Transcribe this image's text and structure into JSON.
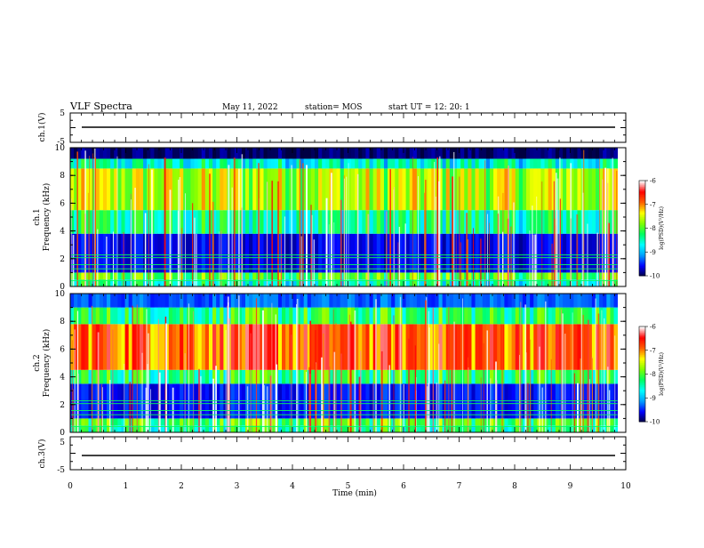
{
  "header": {
    "title": "VLF Spectra",
    "date": "May 11, 2022",
    "station": "station= MOS",
    "start": "start  UT  =   12: 20: 1"
  },
  "colors": {
    "scale": [
      "#000040",
      "#0000ff",
      "#00a0ff",
      "#00ffff",
      "#00ff60",
      "#80ff00",
      "#ffff00",
      "#ff6000",
      "#ff0000",
      "#ffffff"
    ],
    "trace": "#000000",
    "frame": "#000000"
  },
  "chart_data": [
    {
      "type": "line",
      "name": "channel-1-waveform-panel",
      "ylabel": "ch.1(V)",
      "ylim": [
        -5,
        5
      ],
      "yticks": [
        "5",
        "-5"
      ],
      "xlim": [
        0,
        10
      ],
      "trace_level": 0
    },
    {
      "type": "heatmap",
      "name": "channel-1-spectrogram",
      "ylabel": "ch.1\nFrequency (kHz)",
      "ylim": [
        0,
        10
      ],
      "yticks": [
        "0",
        "2",
        "4",
        "6",
        "8",
        "10"
      ],
      "xlim": [
        0,
        10
      ],
      "data_end": 9.85,
      "colorbar": {
        "ticks": [
          "-6",
          "-7",
          "-8",
          "-9",
          "-10"
        ],
        "label": "log(PSD)(V²/Hz)",
        "range": [
          -10,
          -6
        ]
      },
      "bands": [
        {
          "from": 0.0,
          "to": 0.5,
          "level": -8.5
        },
        {
          "from": 0.5,
          "to": 1.0,
          "level": -8.0
        },
        {
          "from": 1.0,
          "to": 3.8,
          "level": -9.6
        },
        {
          "from": 3.8,
          "to": 5.5,
          "level": -8.4
        },
        {
          "from": 5.5,
          "to": 8.5,
          "level": -7.6
        },
        {
          "from": 8.5,
          "to": 9.2,
          "level": -8.6
        },
        {
          "from": 9.2,
          "to": 10.0,
          "level": -9.9
        }
      ]
    },
    {
      "type": "heatmap",
      "name": "channel-2-spectrogram",
      "ylabel": "ch.2\nFrequency (kHz)",
      "ylim": [
        0,
        10
      ],
      "yticks": [
        "0",
        "2",
        "4",
        "6",
        "8",
        "10"
      ],
      "xlim": [
        0,
        10
      ],
      "data_end": 9.85,
      "colorbar": {
        "ticks": [
          "-6",
          "-7",
          "-8",
          "-9",
          "-10"
        ],
        "label": "log(PSD)(V²/Hz)",
        "range": [
          -10,
          -6
        ]
      },
      "bands": [
        {
          "from": 0.0,
          "to": 0.5,
          "level": -8.3
        },
        {
          "from": 0.5,
          "to": 1.0,
          "level": -8.0
        },
        {
          "from": 1.0,
          "to": 3.5,
          "level": -9.5
        },
        {
          "from": 3.5,
          "to": 4.5,
          "level": -8.2
        },
        {
          "from": 4.5,
          "to": 7.8,
          "level": -6.8
        },
        {
          "from": 7.8,
          "to": 9.0,
          "level": -8.2
        },
        {
          "from": 9.0,
          "to": 10.0,
          "level": -9.3
        }
      ]
    },
    {
      "type": "line",
      "name": "channel-3-waveform-panel",
      "ylabel": "ch.3(V)",
      "ylim": [
        -5,
        5
      ],
      "yticks": [
        "5",
        "-5"
      ],
      "xlim": [
        0,
        10
      ],
      "trace_level": 0
    }
  ],
  "xaxis": {
    "label": "Time (min)",
    "ticks": [
      "0",
      "1",
      "2",
      "3",
      "4",
      "5",
      "6",
      "7",
      "8",
      "9",
      "10"
    ],
    "range": [
      0,
      10
    ]
  }
}
